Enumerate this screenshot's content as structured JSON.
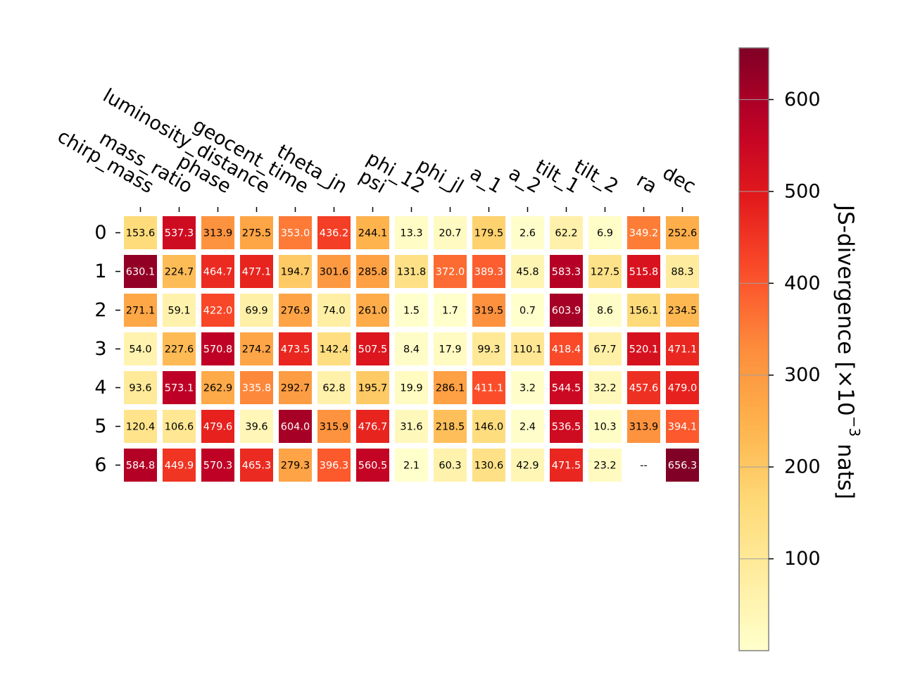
{
  "chart_data": {
    "type": "heatmap",
    "columns": [
      "chirp_mass",
      "mass_ratio",
      "phase",
      "luminosity_distance",
      "geocent_time",
      "theta_jn",
      "psi",
      "phi_12",
      "phi_jl",
      "a_1",
      "a_2",
      "tilt_1",
      "tilt_2",
      "ra",
      "dec"
    ],
    "rows": [
      "0",
      "1",
      "2",
      "3",
      "4",
      "5",
      "6"
    ],
    "values": [
      [
        153.6,
        537.3,
        313.9,
        275.5,
        353.0,
        436.2,
        244.1,
        13.3,
        20.7,
        179.5,
        2.6,
        62.2,
        6.9,
        349.2,
        252.6
      ],
      [
        630.1,
        224.7,
        464.7,
        477.1,
        194.7,
        301.6,
        285.8,
        131.8,
        372.0,
        389.3,
        45.8,
        583.3,
        127.5,
        515.8,
        88.3
      ],
      [
        271.1,
        59.1,
        422.0,
        69.9,
        276.9,
        74.0,
        261.0,
        1.5,
        1.7,
        319.5,
        0.7,
        603.9,
        8.6,
        156.1,
        234.5
      ],
      [
        54.0,
        227.6,
        570.8,
        274.2,
        473.5,
        142.4,
        507.5,
        8.4,
        17.9,
        99.3,
        110.1,
        418.4,
        67.7,
        520.1,
        471.1
      ],
      [
        93.6,
        573.1,
        262.9,
        335.8,
        292.7,
        62.8,
        195.7,
        19.9,
        286.1,
        411.1,
        3.2,
        544.5,
        32.2,
        457.6,
        479.0
      ],
      [
        120.4,
        106.6,
        479.6,
        39.6,
        604.0,
        315.9,
        476.7,
        31.6,
        218.5,
        146.0,
        2.4,
        536.5,
        10.3,
        313.9,
        394.1
      ],
      [
        584.8,
        449.9,
        570.3,
        465.3,
        279.3,
        396.3,
        560.5,
        2.1,
        60.3,
        130.6,
        42.9,
        471.5,
        23.2,
        null,
        656.3
      ]
    ],
    "cell_labels": [
      [
        "153.6",
        "537.3",
        "313.9",
        "275.5",
        "353.0",
        "436.2",
        "244.1",
        "13.3",
        "20.7",
        "179.5",
        "2.6",
        "62.2",
        "6.9",
        "349.2",
        "252.6"
      ],
      [
        "630.1",
        "224.7",
        "464.7",
        "477.1",
        "194.7",
        "301.6",
        "285.8",
        "131.8",
        "372.0",
        "389.3",
        "45.8",
        "583.3",
        "127.5",
        "515.8",
        "88.3"
      ],
      [
        "271.1",
        "59.1",
        "422.0",
        "69.9",
        "276.9",
        "74.0",
        "261.0",
        "1.5",
        "1.7",
        "319.5",
        "0.7",
        "603.9",
        "8.6",
        "156.1",
        "234.5"
      ],
      [
        "54.0",
        "227.6",
        "570.8",
        "274.2",
        "473.5",
        "142.4",
        "507.5",
        "8.4",
        "17.9",
        "99.3",
        "110.1",
        "418.4",
        "67.7",
        "520.1",
        "471.1"
      ],
      [
        "93.6",
        "573.1",
        "262.9",
        "335.8",
        "292.7",
        "62.8",
        "195.7",
        "19.9",
        "286.1",
        "411.1",
        "3.2",
        "544.5",
        "32.2",
        "457.6",
        "479.0"
      ],
      [
        "120.4",
        "106.6",
        "479.6",
        "39.6",
        "604.0",
        "315.9",
        "476.7",
        "31.6",
        "218.5",
        "146.0",
        "2.4",
        "536.5",
        "10.3",
        "313.9",
        "394.1"
      ],
      [
        "584.8",
        "449.9",
        "570.3",
        "465.3",
        "279.3",
        "396.3",
        "560.5",
        "2.1",
        "60.3",
        "130.6",
        "42.9",
        "471.5",
        "23.2",
        "--",
        "656.3"
      ]
    ],
    "colorbar": {
      "label_main": "JS-divergence [×10",
      "label_exp": "−3",
      "label_unit": " nats]",
      "range": [
        0,
        656.3
      ],
      "ticks": [
        100,
        200,
        300,
        400,
        500,
        600
      ],
      "tick_labels": [
        "100",
        "200",
        "300",
        "400",
        "500",
        "600"
      ],
      "colormap": "YlOrRd"
    },
    "grid": false,
    "colors": {
      "text_dark": "#000000",
      "text_light": "#ffffff",
      "cbar_outline": "#808080"
    }
  }
}
